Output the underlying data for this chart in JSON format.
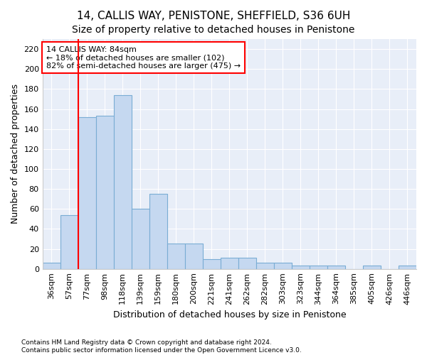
{
  "title": "14, CALLIS WAY, PENISTONE, SHEFFIELD, S36 6UH",
  "subtitle": "Size of property relative to detached houses in Penistone",
  "xlabel": "Distribution of detached houses by size in Penistone",
  "ylabel": "Number of detached properties",
  "categories": [
    "36sqm",
    "57sqm",
    "77sqm",
    "98sqm",
    "118sqm",
    "139sqm",
    "159sqm",
    "180sqm",
    "200sqm",
    "221sqm",
    "241sqm",
    "262sqm",
    "282sqm",
    "303sqm",
    "323sqm",
    "344sqm",
    "364sqm",
    "385sqm",
    "405sqm",
    "426sqm",
    "446sqm"
  ],
  "values": [
    6,
    54,
    152,
    153,
    174,
    60,
    75,
    25,
    25,
    10,
    11,
    11,
    6,
    6,
    3,
    3,
    3,
    0,
    3,
    0,
    3
  ],
  "bar_color": "#c5d8f0",
  "bar_edge_color": "#7aadd4",
  "annotation_text": "14 CALLIS WAY: 84sqm\n← 18% of detached houses are smaller (102)\n82% of semi-detached houses are larger (475) →",
  "annotation_box_color": "white",
  "annotation_box_edge_color": "red",
  "vline_color": "red",
  "vline_x_bin": 2.0,
  "ylim": [
    0,
    230
  ],
  "yticks": [
    0,
    20,
    40,
    60,
    80,
    100,
    120,
    140,
    160,
    180,
    200,
    220
  ],
  "footer_line1": "Contains HM Land Registry data © Crown copyright and database right 2024.",
  "footer_line2": "Contains public sector information licensed under the Open Government Licence v3.0.",
  "bg_color": "#ffffff",
  "plot_bg_color": "#e8eef8",
  "grid_color": "#ffffff",
  "title_fontsize": 11,
  "subtitle_fontsize": 10,
  "tick_fontsize": 8,
  "label_fontsize": 9,
  "annotation_fontsize": 8
}
